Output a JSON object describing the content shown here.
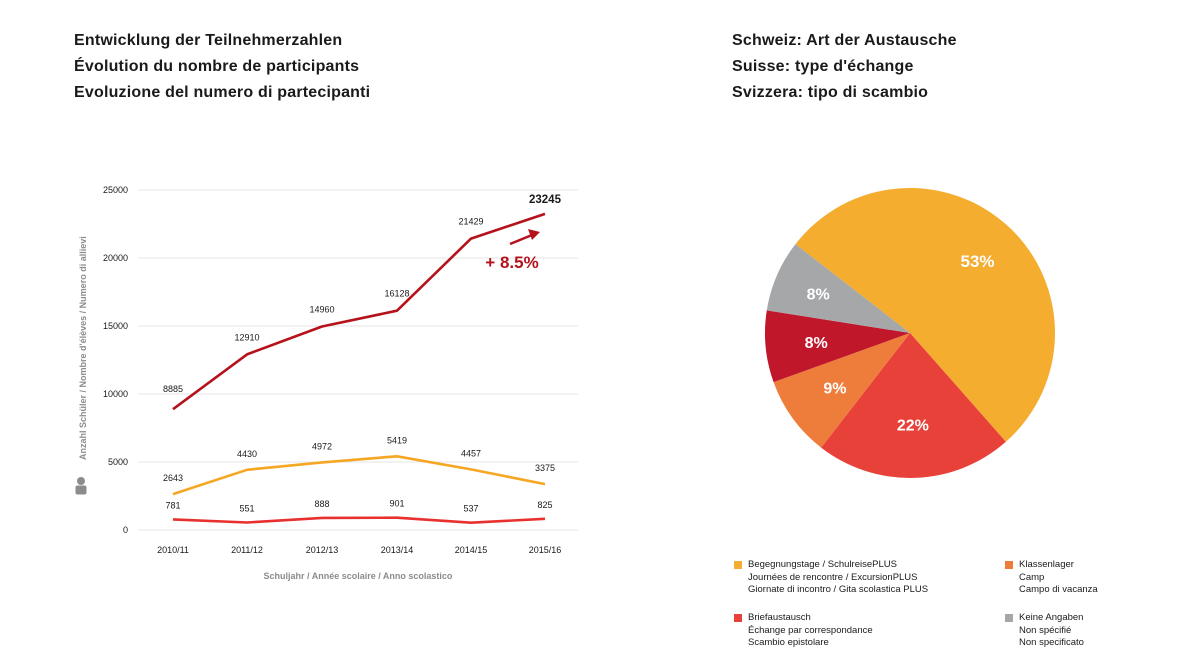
{
  "left_titles": [
    "Entwicklung der Teilnehmerzahlen",
    "Évolution du nombre de participants",
    "Evoluzione del numero di partecipanti"
  ],
  "right_titles": [
    "Schweiz: Art der Austausche",
    "Suisse: type d'échange",
    "Svizzera: tipo di scambio"
  ],
  "colors": {
    "red_dark": "#b5121b",
    "orange": "#f5a623",
    "red": "#e8312f",
    "orange_dark": "#ee7d33",
    "gray": "#a5a7a9",
    "crimson": "#c0172b"
  },
  "chart_data": [
    {
      "type": "line",
      "categories": [
        "2010/11",
        "2011/12",
        "2012/13",
        "2013/14",
        "2014/15",
        "2015/16"
      ],
      "xlabel": "Schuljahr / Année scolaire / Anno scolastico",
      "ylabel": "Anzahl Schüler / Nombre d'élèves / Numero di allievi",
      "ylim": [
        0,
        25000
      ],
      "yticks": [
        0,
        5000,
        10000,
        15000,
        20000,
        25000
      ],
      "ytick_labels": [
        "0",
        "5000",
        "10000",
        "15000",
        "20000",
        "25000"
      ],
      "grid": true,
      "series": [
        {
          "color": "#b5121b",
          "values": [
            8885,
            12910,
            14960,
            16128,
            21429,
            23245
          ],
          "labels": [
            "8885",
            "12910",
            "14960",
            "16128",
            "21429",
            "23245"
          ]
        },
        {
          "color": "#f5a623",
          "values": [
            2643,
            4430,
            4972,
            5419,
            4457,
            3375
          ],
          "labels": [
            "2643",
            "4430",
            "4972",
            "5419",
            "4457",
            "3375"
          ]
        },
        {
          "color": "#e8312f",
          "values": [
            781,
            551,
            888,
            901,
            537,
            825
          ],
          "labels": [
            "781",
            "551",
            "888",
            "901",
            "537",
            "825"
          ]
        }
      ],
      "annotation": "+ 8.5%"
    },
    {
      "type": "pie",
      "slices": [
        {
          "value": 53,
          "label": "53%",
          "color": "#f5ad30"
        },
        {
          "value": 22,
          "label": "22%",
          "color": "#e8413a"
        },
        {
          "value": 9,
          "label": "9%",
          "color": "#ee7d3b"
        },
        {
          "value": 8,
          "label": "8%",
          "color": "#c0172b"
        },
        {
          "value": 8,
          "label": "8%",
          "color": "#a5a7a9"
        }
      ],
      "legend": [
        {
          "color": "#f5ad30",
          "lines": [
            "Begegnungstage / SchulreisePLUS",
            "Journées de rencontre / ExcursionPLUS",
            "Giornate di incontro / Gita scolastica PLUS"
          ]
        },
        {
          "color": "#ee7d3b",
          "lines": [
            "Klassenlager",
            "Camp",
            "Campo di vacanza"
          ]
        },
        {
          "color": "#e8413a",
          "lines": [
            "Briefaustausch",
            "Échange par correspondance",
            "Scambio epistolare"
          ]
        },
        {
          "color": "#a5a7a9",
          "lines": [
            "Keine Angaben",
            "Non spécifié",
            "Non specificato"
          ]
        }
      ]
    }
  ]
}
